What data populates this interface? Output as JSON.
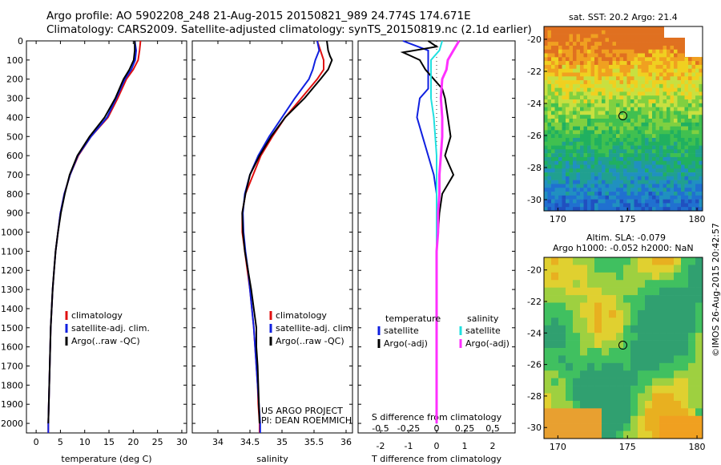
{
  "header": {
    "line1": "Argo profile: AO 5902208_248 21-Aug-2015 20150821_989 24.774S 174.671E",
    "line2": "Climatology: CARS2009. Satellite-adjusted climatology: synTS_20150819.nc (2.1d earlier)"
  },
  "sst_map": {
    "title": "sat. SST: 20.2 Argo: 21.4",
    "x_ticks": [
      "170",
      "175",
      "180"
    ],
    "y_ticks": [
      "-20",
      "-22",
      "-24",
      "-26",
      "-28",
      "-30"
    ],
    "float_position": {
      "lon": 174.671,
      "lat": -24.774
    }
  },
  "sla_map": {
    "title1": "Altim. SLA: -0.079",
    "title2": "Argo h1000: -0.052 h2000: NaN",
    "x_ticks": [
      "170",
      "175",
      "180"
    ],
    "y_ticks": [
      "-20",
      "-22",
      "-24",
      "-26",
      "-28",
      "-30"
    ]
  },
  "side_text": "©IMOS 26-Aug-2015 20:42:57",
  "project": {
    "line1": "US ARGO PROJECT",
    "line2": "PI: DEAN ROEMMICH"
  },
  "colors": {
    "climatology": "#e01010",
    "satellite": "#1020e0",
    "argo": "#000000",
    "sat_salinity": "#20e0e0",
    "argo_salinity": "#ff30ff"
  },
  "chart_data": [
    {
      "type": "line",
      "xlabel": "temperature (deg C)",
      "ylabel": "",
      "xlim": [
        -2,
        31
      ],
      "ylim": [
        2050,
        0
      ],
      "x_ticks": [
        0,
        5,
        10,
        15,
        20,
        25,
        30
      ],
      "y_ticks": [
        0,
        100,
        200,
        300,
        400,
        500,
        600,
        700,
        800,
        900,
        1000,
        1100,
        1200,
        1300,
        1400,
        1500,
        1600,
        1700,
        1800,
        1900,
        2000
      ],
      "legend": [
        "climatology",
        "satellite-adj. clim.",
        "Argo(..raw -QC)"
      ],
      "series": [
        {
          "name": "climatology",
          "color": "#e01010",
          "points": [
            [
              21.5,
              0
            ],
            [
              21.3,
              50
            ],
            [
              21,
              100
            ],
            [
              20,
              150
            ],
            [
              18.6,
              200
            ],
            [
              16.8,
              300
            ],
            [
              14.8,
              400
            ],
            [
              11.3,
              500
            ],
            [
              8.7,
              600
            ],
            [
              7,
              700
            ],
            [
              5.8,
              800
            ],
            [
              5,
              900
            ],
            [
              4.5,
              1000
            ],
            [
              4,
              1100
            ],
            [
              3.7,
              1200
            ],
            [
              3.4,
              1300
            ],
            [
              3.2,
              1400
            ],
            [
              3,
              1500
            ],
            [
              2.9,
              1600
            ],
            [
              2.8,
              1700
            ],
            [
              2.7,
              1800
            ],
            [
              2.6,
              1900
            ],
            [
              2.5,
              2000
            ],
            [
              2.5,
              2050
            ]
          ]
        },
        {
          "name": "satellite-adj. clim.",
          "color": "#1020e0",
          "points": [
            [
              20.3,
              0
            ],
            [
              20.6,
              50
            ],
            [
              20.4,
              100
            ],
            [
              19.6,
              150
            ],
            [
              18.3,
              200
            ],
            [
              16.5,
              300
            ],
            [
              14.6,
              400
            ],
            [
              11.3,
              500
            ],
            [
              8.6,
              600
            ],
            [
              7,
              700
            ],
            [
              5.8,
              800
            ],
            [
              5,
              900
            ],
            [
              4.5,
              1000
            ],
            [
              4,
              1100
            ],
            [
              3.7,
              1200
            ],
            [
              3.4,
              1300
            ],
            [
              3.2,
              1400
            ],
            [
              3,
              1500
            ],
            [
              2.9,
              1600
            ],
            [
              2.8,
              1700
            ],
            [
              2.7,
              1800
            ],
            [
              2.6,
              1900
            ],
            [
              2.5,
              2000
            ],
            [
              2.5,
              2050
            ]
          ]
        },
        {
          "name": "Argo(..raw -QC)",
          "color": "#000000",
          "points": [
            [
              20.3,
              0
            ],
            [
              20.3,
              50
            ],
            [
              20.1,
              100
            ],
            [
              19.2,
              150
            ],
            [
              18,
              200
            ],
            [
              16.3,
              300
            ],
            [
              14.1,
              400
            ],
            [
              11,
              500
            ],
            [
              8.5,
              600
            ],
            [
              6.9,
              700
            ],
            [
              5.9,
              800
            ],
            [
              5.1,
              900
            ],
            [
              4.5,
              1000
            ],
            [
              4,
              1100
            ],
            [
              3.7,
              1200
            ],
            [
              3.4,
              1300
            ],
            [
              3.2,
              1400
            ],
            [
              3,
              1500
            ],
            [
              2.9,
              1600
            ],
            [
              2.8,
              1700
            ],
            [
              2.7,
              1800
            ],
            [
              2.6,
              1900
            ],
            [
              2.5,
              2000
            ]
          ]
        }
      ]
    },
    {
      "type": "line",
      "xlabel": "salinity",
      "ylabel": "",
      "xlim": [
        33.6,
        36.1
      ],
      "ylim": [
        2050,
        0
      ],
      "x_ticks": [
        34,
        34.5,
        35,
        35.5,
        36
      ],
      "legend": [
        "climatology",
        "satellite-adj. clim.",
        "Argo(..raw -QC)"
      ],
      "series": [
        {
          "name": "climatology",
          "color": "#e01010",
          "points": [
            [
              35.55,
              0
            ],
            [
              35.6,
              50
            ],
            [
              35.65,
              100
            ],
            [
              35.65,
              150
            ],
            [
              35.55,
              200
            ],
            [
              35.3,
              300
            ],
            [
              35.05,
              400
            ],
            [
              34.85,
              500
            ],
            [
              34.67,
              600
            ],
            [
              34.55,
              700
            ],
            [
              34.43,
              800
            ],
            [
              34.38,
              900
            ],
            [
              34.38,
              1000
            ],
            [
              34.42,
              1100
            ],
            [
              34.46,
              1200
            ],
            [
              34.5,
              1300
            ],
            [
              34.53,
              1400
            ],
            [
              34.56,
              1500
            ],
            [
              34.58,
              1600
            ],
            [
              34.6,
              1700
            ],
            [
              34.62,
              1800
            ],
            [
              34.63,
              1900
            ],
            [
              34.65,
              2000
            ],
            [
              34.65,
              2050
            ]
          ]
        },
        {
          "name": "satellite-adj. clim.",
          "color": "#1020e0",
          "points": [
            [
              35.55,
              0
            ],
            [
              35.58,
              50
            ],
            [
              35.52,
              100
            ],
            [
              35.48,
              150
            ],
            [
              35.42,
              200
            ],
            [
              35.2,
              300
            ],
            [
              35,
              400
            ],
            [
              34.8,
              500
            ],
            [
              34.63,
              600
            ],
            [
              34.5,
              700
            ],
            [
              34.42,
              800
            ],
            [
              34.39,
              900
            ],
            [
              34.4,
              1000
            ],
            [
              34.43,
              1100
            ],
            [
              34.47,
              1200
            ],
            [
              34.5,
              1300
            ],
            [
              34.53,
              1400
            ],
            [
              34.56,
              1500
            ],
            [
              34.58,
              1600
            ],
            [
              34.6,
              1700
            ],
            [
              34.62,
              1800
            ],
            [
              34.64,
              1900
            ],
            [
              34.66,
              2000
            ],
            [
              34.66,
              2050
            ]
          ]
        },
        {
          "name": "Argo(..raw -QC)",
          "color": "#000000",
          "points": [
            [
              35.7,
              0
            ],
            [
              35.72,
              50
            ],
            [
              35.75,
              80
            ],
            [
              35.78,
              100
            ],
            [
              35.72,
              150
            ],
            [
              35.6,
              200
            ],
            [
              35.35,
              300
            ],
            [
              35.05,
              400
            ],
            [
              34.83,
              500
            ],
            [
              34.65,
              600
            ],
            [
              34.5,
              700
            ],
            [
              34.43,
              800
            ],
            [
              34.38,
              900
            ],
            [
              34.39,
              1000
            ],
            [
              34.42,
              1100
            ],
            [
              34.47,
              1200
            ],
            [
              34.52,
              1300
            ],
            [
              34.56,
              1400
            ],
            [
              34.6,
              1500
            ],
            [
              34.6,
              1600
            ],
            [
              34.62,
              1700
            ],
            [
              34.63,
              1800
            ],
            [
              34.64,
              1900
            ],
            [
              34.65,
              2000
            ]
          ]
        }
      ]
    },
    {
      "type": "line",
      "xlabel": "T difference from climatology",
      "ylabel": "",
      "xlim": [
        -2.8,
        2.8
      ],
      "ylim": [
        2050,
        0
      ],
      "x_ticks": [
        "-2",
        "-1",
        "0",
        "1",
        "2"
      ],
      "top_xlabel": "S difference from climatology",
      "top_x_ticks": [
        "-0.5",
        "-0.25",
        "0",
        "0.25",
        "0.5"
      ],
      "legend_title_t": "temperature",
      "legend_title_s": "salinity",
      "legend": [
        "satellite",
        "Argo(-adj)",
        "satellite",
        "Argo(-adj)"
      ],
      "series": [
        {
          "name": "satellite",
          "color": "#1020e0",
          "points": [
            [
              -1.2,
              0
            ],
            [
              -0.3,
              50
            ],
            [
              -0.3,
              100
            ],
            [
              -0.3,
              150
            ],
            [
              -0.3,
              250
            ],
            [
              -0.6,
              300
            ],
            [
              -0.7,
              400
            ],
            [
              -0.5,
              500
            ],
            [
              -0.3,
              600
            ],
            [
              -0.1,
              700
            ],
            [
              0,
              800
            ],
            [
              0,
              2000
            ]
          ]
        },
        {
          "name": "Argo(-adj)",
          "color": "#000000",
          "points": [
            [
              -0.3,
              0
            ],
            [
              0,
              30
            ],
            [
              -1.2,
              60
            ],
            [
              -0.6,
              100
            ],
            [
              -0.4,
              150
            ],
            [
              0.2,
              250
            ],
            [
              0.3,
              300
            ],
            [
              0.4,
              400
            ],
            [
              0.5,
              500
            ],
            [
              0.3,
              600
            ],
            [
              0.6,
              700
            ],
            [
              0.2,
              800
            ],
            [
              0.1,
              900
            ],
            [
              0.05,
              1000
            ],
            [
              0,
              1100
            ],
            [
              0,
              2000
            ]
          ]
        },
        {
          "name": "satellite",
          "color": "#20e0e0",
          "points": [
            [
              0.2,
              0
            ],
            [
              0.1,
              50
            ],
            [
              -0.2,
              100
            ],
            [
              -0.2,
              200
            ],
            [
              -0.2,
              300
            ],
            [
              -0.1,
              400
            ],
            [
              -0.05,
              500
            ],
            [
              0,
              600
            ],
            [
              0,
              700
            ],
            [
              0,
              800
            ],
            [
              0,
              1400
            ],
            [
              0,
              2000
            ]
          ]
        },
        {
          "name": "Argo(-adj)",
          "color": "#ff30ff",
          "points": [
            [
              0.8,
              0
            ],
            [
              0.6,
              50
            ],
            [
              0.4,
              100
            ],
            [
              0.35,
              150
            ],
            [
              0.2,
              200
            ],
            [
              0.15,
              300
            ],
            [
              0.2,
              400
            ],
            [
              0.2,
              500
            ],
            [
              0.15,
              600
            ],
            [
              0.1,
              700
            ],
            [
              0.1,
              800
            ],
            [
              0.05,
              900
            ],
            [
              0.05,
              1000
            ],
            [
              0,
              1100
            ],
            [
              0,
              1400
            ],
            [
              0,
              2000
            ]
          ]
        }
      ]
    }
  ]
}
